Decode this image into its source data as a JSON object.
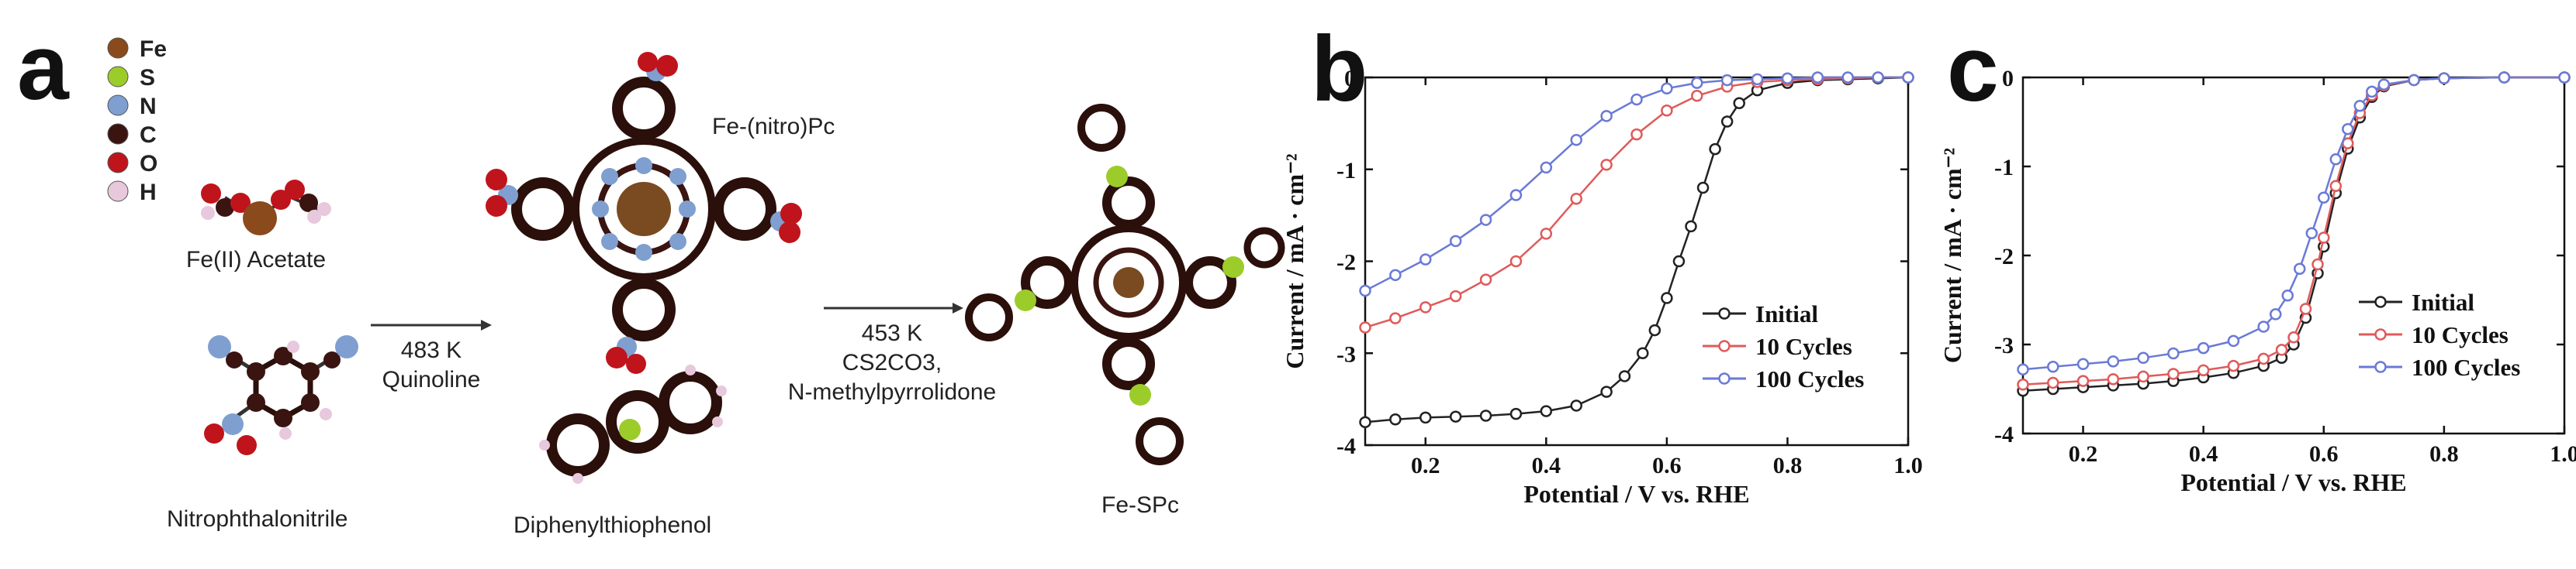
{
  "panel_a": {
    "letter": "a",
    "legend": [
      {
        "symbol": "Fe",
        "color": "#8a4a1c"
      },
      {
        "symbol": "S",
        "color": "#9ccc2a"
      },
      {
        "symbol": "N",
        "color": "#7f9fd0"
      },
      {
        "symbol": "C",
        "color": "#3a1410"
      },
      {
        "symbol": "O",
        "color": "#c0141c"
      },
      {
        "symbol": "H",
        "color": "#e8c8dc"
      }
    ],
    "labels": {
      "fe_acetate": "Fe(II) Acetate",
      "nitrophthalonitrile": "Nitrophthalonitrile",
      "fe_nitro_pc": "Fe-(nitro)Pc",
      "diphenylthiophenol": "Diphenylthiophenol",
      "fe_spc": "Fe-SPc"
    },
    "step1": {
      "temp": "483 K",
      "reagent": "Quinoline"
    },
    "step2": {
      "temp": "453 K",
      "reagent": "CS2CO3,",
      "solvent": "N-methylpyrrolidone"
    }
  },
  "chart_data": [
    {
      "panel": "b",
      "type": "line",
      "xlabel": "Potential / V vs. RHE",
      "ylabel": "Current / mA · cm⁻²",
      "xlim": [
        0.1,
        1.0
      ],
      "ylim": [
        -4,
        0
      ],
      "xticks": [
        "0.2",
        "0.4",
        "0.6",
        "0.8",
        "1.0"
      ],
      "yticks": [
        "0",
        "-1",
        "-2",
        "-3",
        "-4"
      ],
      "legend_position": "lower-right",
      "series": [
        {
          "name": "Initial",
          "color": "#222222",
          "x": [
            0.1,
            0.15,
            0.2,
            0.25,
            0.3,
            0.35,
            0.4,
            0.45,
            0.5,
            0.53,
            0.56,
            0.58,
            0.6,
            0.62,
            0.64,
            0.66,
            0.68,
            0.7,
            0.72,
            0.75,
            0.8,
            0.85,
            0.9,
            0.95,
            1.0
          ],
          "y": [
            -3.75,
            -3.72,
            -3.7,
            -3.69,
            -3.68,
            -3.66,
            -3.63,
            -3.57,
            -3.42,
            -3.25,
            -3.0,
            -2.75,
            -2.4,
            -2.0,
            -1.62,
            -1.2,
            -0.78,
            -0.48,
            -0.28,
            -0.14,
            -0.06,
            -0.03,
            -0.02,
            -0.01,
            0.0
          ]
        },
        {
          "name": "10 Cycles",
          "color": "#e05a5a",
          "x": [
            0.1,
            0.15,
            0.2,
            0.25,
            0.3,
            0.35,
            0.4,
            0.45,
            0.5,
            0.55,
            0.6,
            0.65,
            0.7,
            0.75,
            0.8,
            0.85,
            0.9,
            0.95,
            1.0
          ],
          "y": [
            -2.72,
            -2.62,
            -2.5,
            -2.38,
            -2.2,
            -2.0,
            -1.7,
            -1.32,
            -0.95,
            -0.62,
            -0.36,
            -0.2,
            -0.1,
            -0.05,
            -0.03,
            -0.02,
            -0.01,
            0.0,
            0.0
          ]
        },
        {
          "name": "100 Cycles",
          "color": "#6a7ad6",
          "x": [
            0.1,
            0.15,
            0.2,
            0.25,
            0.3,
            0.35,
            0.4,
            0.45,
            0.5,
            0.55,
            0.6,
            0.65,
            0.7,
            0.75,
            0.8,
            0.85,
            0.9,
            0.95,
            1.0
          ],
          "y": [
            -2.32,
            -2.15,
            -1.98,
            -1.78,
            -1.55,
            -1.28,
            -0.98,
            -0.68,
            -0.42,
            -0.24,
            -0.12,
            -0.06,
            -0.03,
            -0.02,
            -0.01,
            0.0,
            0.0,
            0.0,
            0.0
          ]
        }
      ]
    },
    {
      "panel": "c",
      "type": "line",
      "xlabel": "Potential / V vs. RHE",
      "ylabel": "Current / mA · cm⁻²",
      "xlim": [
        0.1,
        1.0
      ],
      "ylim": [
        -4,
        0
      ],
      "xticks": [
        "0.2",
        "0.4",
        "0.6",
        "0.8",
        "1.0"
      ],
      "yticks": [
        "0",
        "-1",
        "-2",
        "-3",
        "-4"
      ],
      "legend_position": "lower-right",
      "series": [
        {
          "name": "Initial",
          "color": "#222222",
          "x": [
            0.1,
            0.15,
            0.2,
            0.25,
            0.3,
            0.35,
            0.4,
            0.45,
            0.5,
            0.53,
            0.55,
            0.57,
            0.59,
            0.6,
            0.62,
            0.64,
            0.66,
            0.68,
            0.7,
            0.75,
            0.8,
            0.9,
            1.0
          ],
          "y": [
            -3.52,
            -3.5,
            -3.48,
            -3.46,
            -3.44,
            -3.41,
            -3.37,
            -3.32,
            -3.24,
            -3.15,
            -3.0,
            -2.7,
            -2.2,
            -1.9,
            -1.3,
            -0.8,
            -0.45,
            -0.22,
            -0.1,
            -0.03,
            -0.01,
            0.0,
            0.0
          ]
        },
        {
          "name": "10 Cycles",
          "color": "#e05a5a",
          "x": [
            0.1,
            0.15,
            0.2,
            0.25,
            0.3,
            0.35,
            0.4,
            0.45,
            0.5,
            0.53,
            0.55,
            0.57,
            0.59,
            0.6,
            0.62,
            0.64,
            0.66,
            0.68,
            0.7,
            0.75,
            0.8,
            0.9,
            1.0
          ],
          "y": [
            -3.45,
            -3.43,
            -3.41,
            -3.39,
            -3.36,
            -3.33,
            -3.29,
            -3.24,
            -3.16,
            -3.06,
            -2.92,
            -2.6,
            -2.1,
            -1.8,
            -1.22,
            -0.74,
            -0.4,
            -0.2,
            -0.09,
            -0.03,
            -0.01,
            0.0,
            0.0
          ]
        },
        {
          "name": "100 Cycles",
          "color": "#6a7ad6",
          "x": [
            0.1,
            0.15,
            0.2,
            0.25,
            0.3,
            0.35,
            0.4,
            0.45,
            0.5,
            0.52,
            0.54,
            0.56,
            0.58,
            0.6,
            0.62,
            0.64,
            0.66,
            0.68,
            0.7,
            0.75,
            0.8,
            0.9,
            1.0
          ],
          "y": [
            -3.28,
            -3.25,
            -3.22,
            -3.19,
            -3.15,
            -3.1,
            -3.04,
            -2.96,
            -2.8,
            -2.66,
            -2.45,
            -2.15,
            -1.75,
            -1.35,
            -0.92,
            -0.58,
            -0.32,
            -0.16,
            -0.08,
            -0.03,
            -0.01,
            0.0,
            0.0
          ]
        }
      ]
    }
  ]
}
